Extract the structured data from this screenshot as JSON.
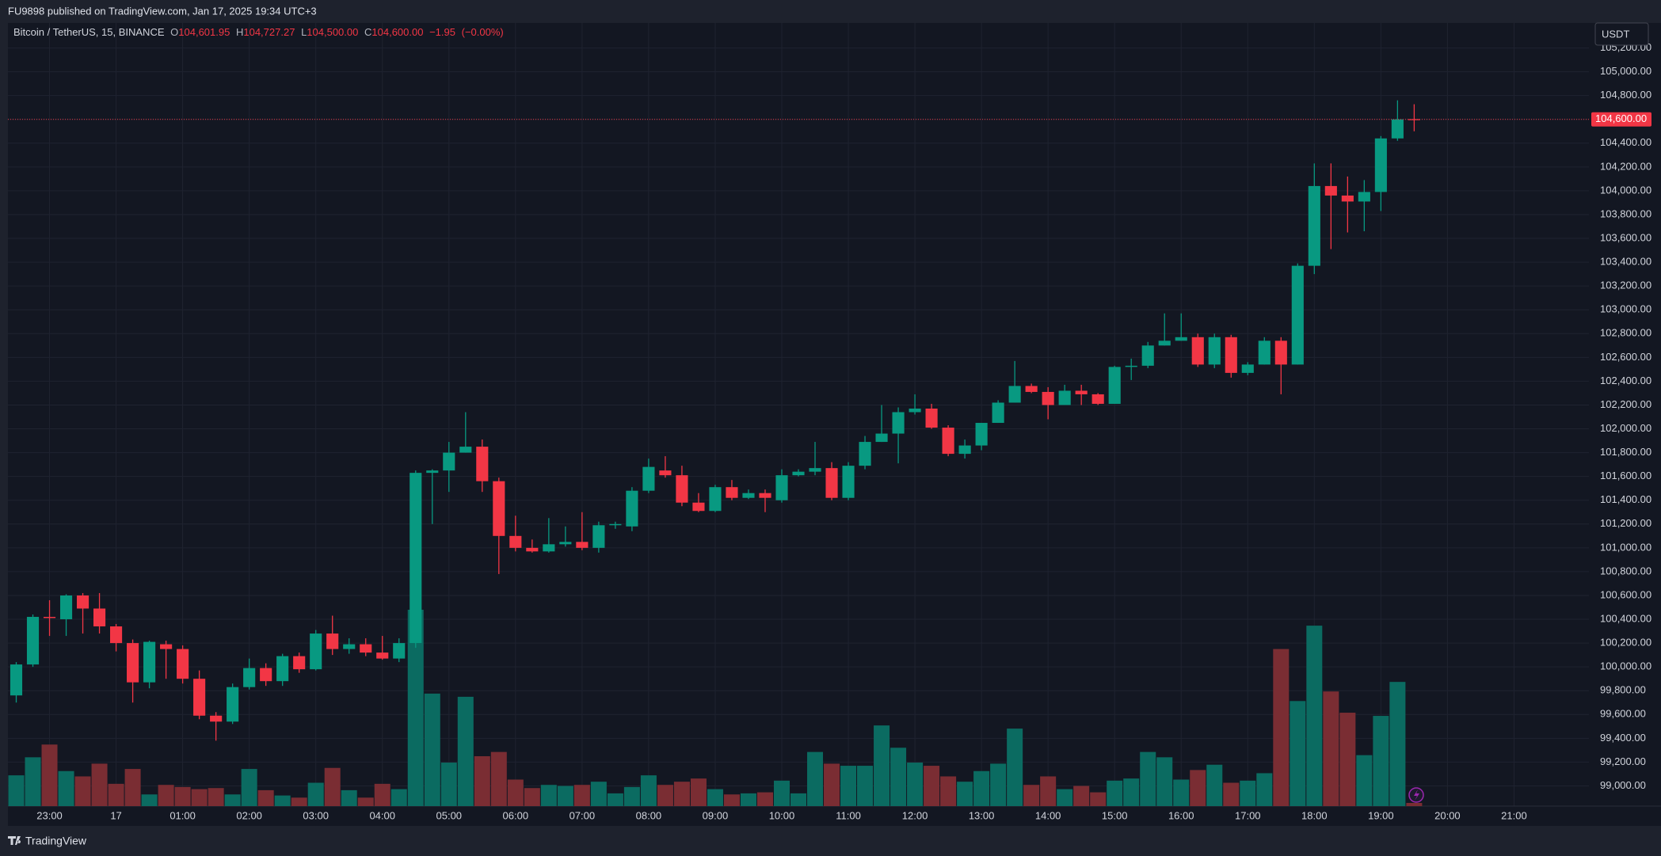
{
  "header": {
    "text": "FU9898 published on TradingView.com, Jan 17, 2025 19:34 UTC+3"
  },
  "footer": {
    "brand": "TradingView"
  },
  "currency_button": "USDT",
  "chart_data": {
    "type": "candlestick",
    "legend": {
      "symbol": "Bitcoin / TetherUS, 15, BINANCE",
      "open_label": "O",
      "open": {
        "value": 104601.95,
        "label": "104,601.95"
      },
      "high_label": "H",
      "high": {
        "value": 104727.27,
        "label": "104,727.27"
      },
      "low_label": "L",
      "low": {
        "value": 104500,
        "label": "104,500.00"
      },
      "close_label": "C",
      "close": {
        "value": 104600,
        "label": "104,600.00"
      },
      "change": {
        "value": -1.95,
        "label": "−1.95"
      },
      "change_pct": {
        "value": -0.0019,
        "label": "(−0.00%)"
      }
    },
    "categories": [
      null,
      null,
      "23:00",
      null,
      null,
      null,
      "17",
      null,
      null,
      null,
      "01:00",
      null,
      null,
      null,
      "02:00",
      null,
      null,
      null,
      "03:00",
      null,
      null,
      null,
      "04:00",
      null,
      null,
      null,
      "05:00",
      null,
      null,
      null,
      "06:00",
      null,
      null,
      null,
      "07:00",
      null,
      null,
      null,
      "08:00",
      null,
      null,
      null,
      "09:00",
      null,
      null,
      null,
      "10:00",
      null,
      null,
      null,
      "11:00",
      null,
      null,
      null,
      "12:00",
      null,
      null,
      null,
      "13:00",
      null,
      null,
      null,
      "14:00",
      null,
      null,
      null,
      "15:00",
      null,
      null,
      null,
      "16:00",
      null,
      null,
      null,
      "17:00",
      null,
      null,
      null,
      "18:00",
      null,
      null,
      null,
      "19:00",
      null,
      null,
      null,
      "20:00",
      null,
      null,
      null,
      "21:00",
      null,
      null,
      null,
      null
    ],
    "ohlc": {
      "open": [
        99760,
        100020,
        100420,
        100400,
        100600,
        100490,
        100340,
        100200,
        99870,
        100190,
        100150,
        99900,
        99590,
        99540,
        99830,
        99990,
        99880,
        100090,
        99980,
        100280,
        100150,
        100190,
        100120,
        100070,
        100200,
        101630,
        101650,
        101800,
        101850,
        101560,
        101100,
        101000,
        100970,
        101030,
        101050,
        101000,
        101190,
        101180,
        101480,
        101650,
        101610,
        101380,
        101310,
        101510,
        101420,
        101460,
        101400,
        101610,
        101640,
        101670,
        101420,
        101690,
        101890,
        101960,
        102140,
        102170,
        102010,
        101790,
        101860,
        102050,
        102220,
        102360,
        102310,
        102200,
        102320,
        102290,
        102210,
        102520,
        102530,
        102700,
        102740,
        102770,
        102540,
        102770,
        102470,
        102540,
        102740,
        102540,
        103370,
        104040,
        103960,
        103910,
        103990,
        104440,
        104601.95,
        null,
        null,
        null,
        null,
        null,
        null,
        null,
        null,
        null,
        null
      ],
      "high": [
        100040,
        100440,
        100560,
        100610,
        100620,
        100620,
        100360,
        100230,
        100220,
        100220,
        100180,
        99970,
        99620,
        99860,
        100070,
        100030,
        100110,
        100120,
        100310,
        100430,
        100240,
        100240,
        100260,
        100240,
        101650,
        101660,
        101890,
        102140,
        101910,
        101590,
        101270,
        101070,
        101250,
        101180,
        101300,
        101220,
        101220,
        101510,
        101750,
        101770,
        101690,
        101460,
        101530,
        101570,
        101490,
        101490,
        101660,
        101660,
        101890,
        101720,
        101720,
        101940,
        102200,
        102180,
        102290,
        102210,
        102030,
        101910,
        102050,
        102240,
        102570,
        102380,
        102350,
        102370,
        102370,
        102300,
        102530,
        102590,
        102730,
        102970,
        102970,
        102800,
        102800,
        102790,
        102560,
        102770,
        102770,
        103390,
        104230,
        104230,
        104120,
        104090,
        104460,
        104760,
        104727.27,
        null,
        null,
        null,
        null,
        null,
        null,
        null,
        null,
        null,
        null
      ],
      "low": [
        99700,
        100000,
        100260,
        100260,
        100280,
        100280,
        100130,
        99700,
        99820,
        99900,
        99860,
        99560,
        99380,
        99520,
        99810,
        99840,
        99840,
        99950,
        99970,
        100100,
        100110,
        100090,
        100060,
        100040,
        100160,
        101200,
        101470,
        101800,
        101470,
        100780,
        100970,
        100960,
        100960,
        101010,
        100980,
        100960,
        101160,
        101140,
        101460,
        101590,
        101350,
        101300,
        101300,
        101400,
        101410,
        101300,
        101380,
        101600,
        101610,
        101400,
        101400,
        101660,
        101890,
        101710,
        102120,
        102000,
        101770,
        101750,
        101820,
        102050,
        102220,
        102300,
        102080,
        102200,
        102200,
        102200,
        102210,
        102410,
        102510,
        102700,
        102740,
        102520,
        102510,
        102430,
        102450,
        102540,
        102290,
        102540,
        103300,
        103510,
        103650,
        103660,
        103830,
        104420,
        104500,
        null,
        null,
        null,
        null,
        null,
        null,
        null,
        null,
        null,
        null
      ],
      "close": [
        100020,
        100420,
        100410,
        100600,
        100490,
        100340,
        100200,
        99870,
        100210,
        100150,
        99900,
        99590,
        99540,
        99830,
        99990,
        99880,
        100090,
        99980,
        100280,
        100150,
        100190,
        100120,
        100070,
        100200,
        101630,
        101650,
        101800,
        101850,
        101560,
        101100,
        101000,
        100970,
        101030,
        101050,
        101000,
        101190,
        101200,
        101480,
        101680,
        101610,
        101380,
        101310,
        101510,
        101420,
        101460,
        101420,
        101610,
        101640,
        101670,
        101420,
        101690,
        101890,
        101960,
        102140,
        102170,
        102010,
        101790,
        101860,
        102050,
        102220,
        102360,
        102310,
        102200,
        102320,
        102290,
        102210,
        102520,
        102530,
        102700,
        102740,
        102770,
        102540,
        102770,
        102470,
        102540,
        102740,
        102540,
        103370,
        104040,
        103960,
        103910,
        103990,
        104440,
        104600,
        104600,
        null,
        null,
        null,
        null,
        null,
        null,
        null,
        null,
        null,
        null
      ]
    },
    "volume": [
      29,
      46,
      58,
      33,
      28,
      40,
      21,
      35,
      11,
      20,
      18,
      16,
      17,
      11,
      35,
      15,
      10,
      8,
      22,
      36,
      15,
      8,
      21,
      16,
      185,
      106,
      41,
      103,
      47,
      51,
      25,
      17,
      20,
      19,
      20,
      23,
      12,
      18,
      29,
      20,
      23,
      26,
      16,
      11,
      12,
      13,
      24,
      12,
      51,
      40,
      38,
      38,
      76,
      55,
      41,
      38,
      28,
      23,
      33,
      40,
      73,
      20,
      28,
      16,
      19,
      13,
      24,
      26,
      51,
      46,
      25,
      34,
      39,
      22,
      24,
      31,
      148,
      99,
      170,
      108,
      88,
      48,
      85,
      117,
      3,
      null,
      null,
      null,
      null,
      null,
      null,
      null,
      null,
      null,
      null
    ],
    "up_color": "#089981",
    "down_color": "#f23645",
    "volume_up_color": "#0b6b61",
    "volume_down_color": "#7a2d33",
    "last_price": {
      "value": 104600,
      "label": "104,600.00"
    },
    "ylim": [
      98830,
      105410
    ],
    "yticks": [
      {
        "value": 99000,
        "label": "99,000.00"
      },
      {
        "value": 99200,
        "label": "99,200.00"
      },
      {
        "value": 99400,
        "label": "99,400.00"
      },
      {
        "value": 99600,
        "label": "99,600.00"
      },
      {
        "value": 99800,
        "label": "99,800.00"
      },
      {
        "value": 100000,
        "label": "100,000.00"
      },
      {
        "value": 100200,
        "label": "100,200.00"
      },
      {
        "value": 100400,
        "label": "100,400.00"
      },
      {
        "value": 100600,
        "label": "100,600.00"
      },
      {
        "value": 100800,
        "label": "100,800.00"
      },
      {
        "value": 101000,
        "label": "101,000.00"
      },
      {
        "value": 101200,
        "label": "101,200.00"
      },
      {
        "value": 101400,
        "label": "101,400.00"
      },
      {
        "value": 101600,
        "label": "101,600.00"
      },
      {
        "value": 101800,
        "label": "101,800.00"
      },
      {
        "value": 102000,
        "label": "102,000.00"
      },
      {
        "value": 102200,
        "label": "102,200.00"
      },
      {
        "value": 102400,
        "label": "102,400.00"
      },
      {
        "value": 102600,
        "label": "102,600.00"
      },
      {
        "value": 102800,
        "label": "102,800.00"
      },
      {
        "value": 103000,
        "label": "103,000.00"
      },
      {
        "value": 103200,
        "label": "103,200.00"
      },
      {
        "value": 103400,
        "label": "103,400.00"
      },
      {
        "value": 103600,
        "label": "103,600.00"
      },
      {
        "value": 103800,
        "label": "103,800.00"
      },
      {
        "value": 104000,
        "label": "104,000.00"
      },
      {
        "value": 104200,
        "label": "104,200.00"
      },
      {
        "value": 104400,
        "label": "104,400.00"
      },
      {
        "value": 104600,
        "label": "104,600.00"
      },
      {
        "value": 104800,
        "label": "104,800.00"
      },
      {
        "value": 105000,
        "label": "105,000.00"
      },
      {
        "value": 105200,
        "label": "105,200.00"
      }
    ],
    "grid": true
  }
}
